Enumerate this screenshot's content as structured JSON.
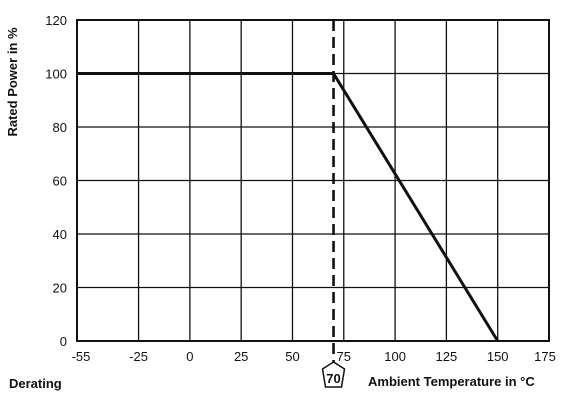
{
  "chart_data": {
    "type": "line",
    "title": "",
    "xlabel": "Ambient Temperature in °C",
    "ylabel": "Rated Power in %",
    "footer_label": "Derating",
    "marker_label": "70",
    "marker_x": 70,
    "xlim": [
      -55,
      175
    ],
    "ylim": [
      0,
      120
    ],
    "x_ticks": [
      -55,
      -25,
      0,
      25,
      50,
      75,
      100,
      125,
      150,
      175
    ],
    "y_ticks": [
      0,
      20,
      40,
      60,
      80,
      100,
      120
    ],
    "grid": true,
    "series": [
      {
        "x": [
          -55,
          70,
          150
        ],
        "y": [
          100,
          100,
          0
        ]
      }
    ]
  }
}
